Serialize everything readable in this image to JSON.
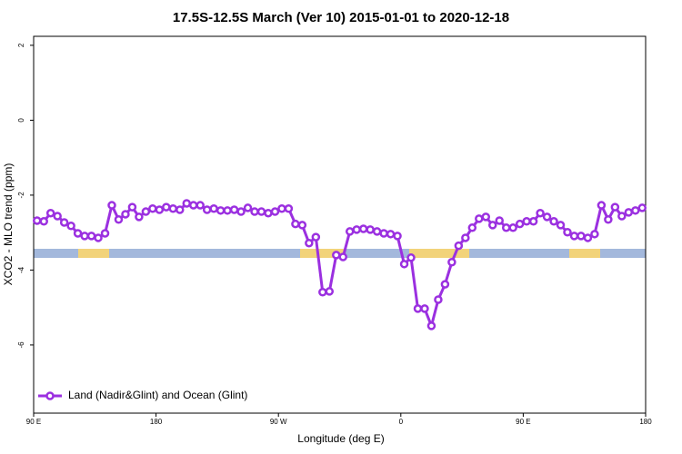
{
  "chart_data": {
    "type": "line",
    "title": "17.5S-12.5S March (Ver 10)   2015-01-01 to 2020-12-18",
    "x_label": "Longitude (deg E)",
    "y_label": "XCO2 - MLO trend (ppm)",
    "x": [
      92.5,
      97.5,
      102.5,
      107.5,
      112.5,
      117.5,
      122.5,
      127.5,
      132.5,
      137.5,
      142.5,
      147.5,
      152.5,
      157.5,
      162.5,
      167.5,
      172.5,
      177.5,
      182.5,
      187.5,
      192.5,
      197.5,
      202.5,
      207.5,
      212.5,
      217.5,
      222.5,
      227.5,
      232.5,
      237.5,
      242.5,
      247.5,
      252.5,
      257.5,
      262.5,
      267.5,
      272.5,
      277.5,
      282.5,
      287.5,
      292.5,
      297.5,
      302.5,
      307.5,
      312.5,
      317.5,
      322.5,
      327.5,
      332.5,
      337.5,
      342.5,
      347.5,
      352.5,
      357.5,
      362.5,
      367.5,
      372.5,
      377.5,
      382.5,
      387.5,
      392.5,
      397.5,
      402.5,
      407.5,
      412.5,
      417.5,
      422.5,
      427.5,
      432.5,
      437.5,
      442.5,
      447.5,
      452.5,
      457.5,
      462.5,
      467.5,
      472.5,
      477.5,
      482.5,
      487.5,
      492.5,
      497.5,
      502.5,
      507.5,
      512.5,
      517.5,
      522.5,
      527.5,
      532.5,
      537.5
    ],
    "series": [
      {
        "name": "Land (Nadir&Glint) and Ocean (Glint)",
        "color": "#9b30e0",
        "values": [
          -2.68,
          -2.7,
          -2.48,
          -2.56,
          -2.73,
          -2.82,
          -3.02,
          -3.09,
          -3.09,
          -3.14,
          -3.02,
          -2.27,
          -2.65,
          -2.51,
          -2.32,
          -2.58,
          -2.44,
          -2.36,
          -2.39,
          -2.32,
          -2.36,
          -2.39,
          -2.22,
          -2.27,
          -2.27,
          -2.39,
          -2.36,
          -2.41,
          -2.41,
          -2.39,
          -2.44,
          -2.34,
          -2.44,
          -2.44,
          -2.48,
          -2.44,
          -2.36,
          -2.36,
          -2.77,
          -2.8,
          -3.28,
          -3.12,
          -4.59,
          -4.57,
          -3.6,
          -3.65,
          -2.97,
          -2.92,
          -2.9,
          -2.92,
          -2.97,
          -3.02,
          -3.04,
          -3.09,
          -3.84,
          -3.67,
          -5.03,
          -5.03,
          -5.49,
          -4.79,
          -4.38,
          -3.79,
          -3.35,
          -3.14,
          -2.87,
          -2.63,
          -2.58,
          -2.8,
          -2.68,
          -2.87,
          -2.87,
          -2.77,
          -2.7,
          -2.7,
          -2.48,
          -2.58,
          -2.7,
          -2.8,
          -2.99,
          -3.09,
          -3.09,
          -3.14,
          -3.04,
          -2.27,
          -2.65,
          -2.32,
          -2.56,
          -2.46,
          -2.41,
          -2.34
        ]
      }
    ],
    "xlim": [
      90,
      540
    ],
    "xticks": [
      {
        "value": 90,
        "label": "90 E"
      },
      180,
      {
        "value": 270,
        "label": "90 W"
      },
      {
        "value": 360,
        "label": "0"
      },
      {
        "value": 450,
        "label": "90 E"
      },
      {
        "value": 540,
        "label": "180"
      }
    ],
    "ylim": [
      -7.82,
      2.24
    ],
    "yticks": [
      2,
      0,
      -2,
      -4,
      -6
    ],
    "legend": "bottom-left"
  }
}
